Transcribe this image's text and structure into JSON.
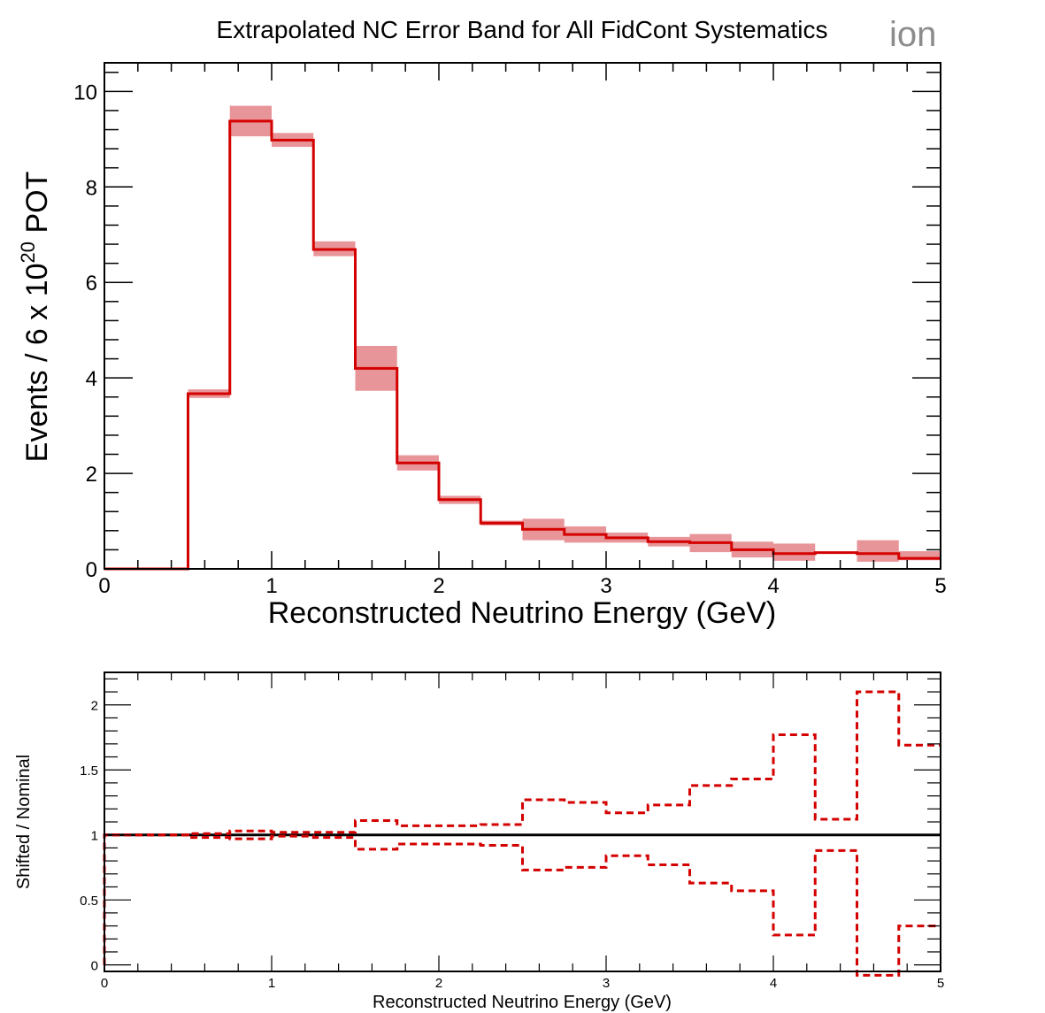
{
  "title": "Extrapolated NC Error Band for All FidCont Systematics",
  "watermark": "ion",
  "colors": {
    "nominal": "#d40000",
    "band": "#e8959a",
    "ratio_line": "#000000"
  },
  "chart_data": [
    {
      "type": "histogram",
      "title": "Extrapolated NC Error Band for All FidCont Systematics",
      "xlabel": "Reconstructed Neutrino Energy (GeV)",
      "ylabel_parts": {
        "base": "Events / 6 x 10",
        "exponent": "20",
        "suffix": " POT"
      },
      "xlim": [
        0,
        5
      ],
      "ylim": [
        0,
        10.6
      ],
      "xticks": [
        "0",
        "1",
        "2",
        "3",
        "4",
        "5"
      ],
      "yticks": [
        "0",
        "2",
        "4",
        "6",
        "8",
        "10"
      ],
      "bin_edges": [
        0,
        0.25,
        0.5,
        0.75,
        1.0,
        1.25,
        1.5,
        1.75,
        2.0,
        2.25,
        2.5,
        2.75,
        3.0,
        3.25,
        3.5,
        3.75,
        4.0,
        4.25,
        4.5,
        4.75,
        5.0
      ],
      "series": [
        {
          "name": "nominal",
          "style": "solid-step",
          "values": [
            0,
            0,
            3.67,
            9.38,
            8.98,
            6.69,
            4.2,
            2.22,
            1.45,
            0.96,
            0.83,
            0.72,
            0.65,
            0.57,
            0.55,
            0.4,
            0.32,
            0.34,
            0.32,
            0.22
          ]
        },
        {
          "name": "error band",
          "style": "band",
          "low": [
            0,
            0,
            3.58,
            9.06,
            8.84,
            6.55,
            3.73,
            2.06,
            1.36,
            0.91,
            0.6,
            0.55,
            0.55,
            0.47,
            0.35,
            0.24,
            0.17,
            0.34,
            0.15,
            0.18
          ],
          "high": [
            0,
            0,
            3.76,
            9.7,
            9.13,
            6.86,
            4.67,
            2.38,
            1.53,
            1.01,
            1.05,
            0.89,
            0.76,
            0.67,
            0.73,
            0.57,
            0.53,
            0.34,
            0.6,
            0.37
          ]
        }
      ]
    },
    {
      "type": "histogram",
      "xlabel": "Reconstructed Neutrino Energy (GeV)",
      "ylabel": "Shifted / Nominal",
      "xlim": [
        0,
        5
      ],
      "ylim": [
        -0.05,
        2.25
      ],
      "xticks": [
        "0",
        "1",
        "2",
        "3",
        "4",
        "5"
      ],
      "yticks": [
        "0",
        "0.5",
        "1",
        "1.5",
        "2"
      ],
      "yticks_values": [
        0,
        0.5,
        1,
        1.5,
        2
      ],
      "bin_edges": [
        0,
        0.25,
        0.5,
        0.75,
        1.0,
        1.25,
        1.5,
        1.75,
        2.0,
        2.25,
        2.5,
        2.75,
        3.0,
        3.25,
        3.5,
        3.75,
        4.0,
        4.25,
        4.5,
        4.75,
        5.0
      ],
      "reference_line": 1,
      "series": [
        {
          "name": "upper shift",
          "style": "dashed-step",
          "values": [
            1,
            1,
            1.01,
            1.03,
            1.02,
            1.02,
            1.11,
            1.07,
            1.07,
            1.08,
            1.27,
            1.25,
            1.17,
            1.23,
            1.38,
            1.43,
            1.77,
            1.12,
            2.1,
            1.69
          ]
        },
        {
          "name": "lower shift",
          "style": "dashed-step",
          "values": [
            1,
            1,
            0.98,
            0.97,
            0.99,
            0.98,
            0.89,
            0.93,
            0.93,
            0.92,
            0.73,
            0.75,
            0.84,
            0.77,
            0.63,
            0.57,
            0.23,
            0.88,
            -0.08,
            0.3
          ]
        }
      ]
    }
  ]
}
